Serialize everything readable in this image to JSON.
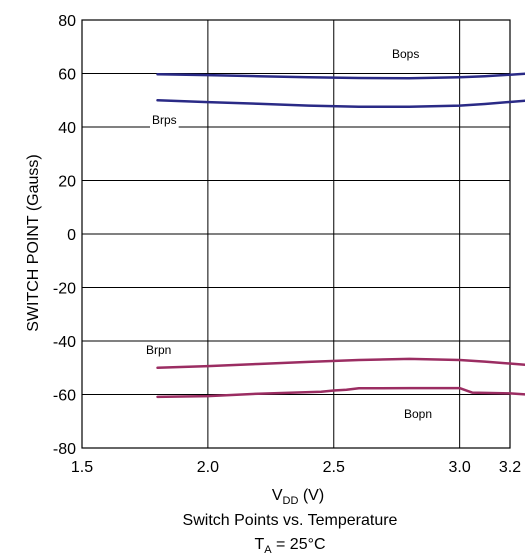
{
  "chart_data": {
    "type": "line",
    "xlabel": {
      "main": "V",
      "sub": "DD",
      "suffix": " (V)"
    },
    "ylabel": "SWITCH POINT (Gauss)",
    "caption": {
      "line1": "Switch Points vs. Temperature",
      "line2": {
        "main": "T",
        "sub": "A",
        "suffix": " = 25°C"
      }
    },
    "xlim": [
      1.5,
      3.2
    ],
    "ylim": [
      -80,
      80
    ],
    "xticks": [
      "1.5",
      "2.0",
      "2.5",
      "3.0",
      "3.2"
    ],
    "xtick_values": [
      1.5,
      2.0,
      2.5,
      3.0,
      3.2
    ],
    "yticks": [
      "80",
      "60",
      "40",
      "20",
      "0",
      "-20",
      "-40",
      "-60",
      "-80"
    ],
    "ytick_values": [
      80,
      60,
      40,
      20,
      0,
      -20,
      -40,
      -60,
      -80
    ],
    "grid": true,
    "colors": {
      "positive": "#2a2a86",
      "negative": "#9b2d62"
    },
    "series": [
      {
        "name": "Bops",
        "color": "#2a2a86",
        "x": [
          1.8,
          2.0,
          2.2,
          2.4,
          2.6,
          2.8,
          3.0,
          3.1,
          3.28
        ],
        "y": [
          59.7,
          59.4,
          59.0,
          58.6,
          58.3,
          58.2,
          58.6,
          59.0,
          60.0
        ]
      },
      {
        "name": "Brps",
        "color": "#2a2a86",
        "x": [
          1.8,
          2.0,
          2.2,
          2.4,
          2.6,
          2.8,
          3.0,
          3.1,
          3.28
        ],
        "y": [
          50.0,
          49.3,
          48.7,
          48.0,
          47.6,
          47.6,
          48.0,
          48.6,
          50.0
        ]
      },
      {
        "name": "Brpn",
        "color": "#9b2d62",
        "x": [
          1.8,
          2.0,
          2.2,
          2.4,
          2.6,
          2.8,
          3.0,
          3.1,
          3.29
        ],
        "y": [
          -50.0,
          -49.4,
          -48.6,
          -47.8,
          -47.1,
          -46.7,
          -47.1,
          -47.7,
          -49.1
        ]
      },
      {
        "name": "Bopn",
        "color": "#9b2d62",
        "x": [
          1.8,
          2.0,
          2.2,
          2.45,
          2.5,
          2.55,
          2.6,
          2.8,
          3.0,
          3.03,
          3.05,
          3.1,
          3.2,
          3.29
        ],
        "y": [
          -60.9,
          -60.6,
          -59.7,
          -59.0,
          -58.5,
          -58.2,
          -57.7,
          -57.6,
          -57.6,
          -58.6,
          -59.3,
          -59.4,
          -59.6,
          -60.1
        ]
      }
    ],
    "labels": [
      "Bops",
      "Brps",
      "Brpn",
      "Bopn"
    ]
  }
}
